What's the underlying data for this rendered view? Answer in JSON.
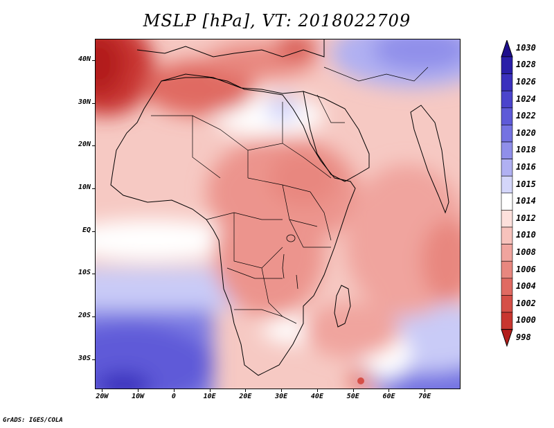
{
  "title": "MSLP [hPa], VT: 2018022709",
  "footer": "GrADS: IGES/COLA",
  "axes": {
    "lat_labels": [
      {
        "value": 40,
        "label": "40N"
      },
      {
        "value": 30,
        "label": "30N"
      },
      {
        "value": 20,
        "label": "20N"
      },
      {
        "value": 10,
        "label": "10N"
      },
      {
        "value": 0,
        "label": "EQ"
      },
      {
        "value": -10,
        "label": "10S"
      },
      {
        "value": -20,
        "label": "20S"
      },
      {
        "value": -30,
        "label": "30S"
      }
    ],
    "lon_labels": [
      {
        "value": -20,
        "label": "20W"
      },
      {
        "value": -10,
        "label": "10W"
      },
      {
        "value": 0,
        "label": "0"
      },
      {
        "value": 10,
        "label": "10E"
      },
      {
        "value": 20,
        "label": "20E"
      },
      {
        "value": 30,
        "label": "30E"
      },
      {
        "value": 40,
        "label": "40E"
      },
      {
        "value": 50,
        "label": "50E"
      },
      {
        "value": 60,
        "label": "60E"
      },
      {
        "value": 70,
        "label": "70E"
      }
    ]
  },
  "colorbar": {
    "levels": [
      {
        "label": "1030",
        "color": "#1e0f8c"
      },
      {
        "label": "1028",
        "color": "#2a1fa8"
      },
      {
        "label": "1026",
        "color": "#3a30bd"
      },
      {
        "label": "1024",
        "color": "#4b44cc"
      },
      {
        "label": "1022",
        "color": "#5e5ad8"
      },
      {
        "label": "1020",
        "color": "#7573e2"
      },
      {
        "label": "1018",
        "color": "#908fea"
      },
      {
        "label": "1016",
        "color": "#b0b0f2"
      },
      {
        "label": "1015",
        "color": "#d4d6fa"
      },
      {
        "label": "1014",
        "color": "#ffffff"
      },
      {
        "label": "1012",
        "color": "#fde0dc"
      },
      {
        "label": "1010",
        "color": "#f7c2bc"
      },
      {
        "label": "1008",
        "color": "#f0a49e"
      },
      {
        "label": "1006",
        "color": "#e8877f"
      },
      {
        "label": "1004",
        "color": "#e06a62"
      },
      {
        "label": "1002",
        "color": "#d54f47"
      },
      {
        "label": "1000",
        "color": "#c83630"
      },
      {
        "label": "998",
        "color": "#b21e1c"
      }
    ]
  }
}
